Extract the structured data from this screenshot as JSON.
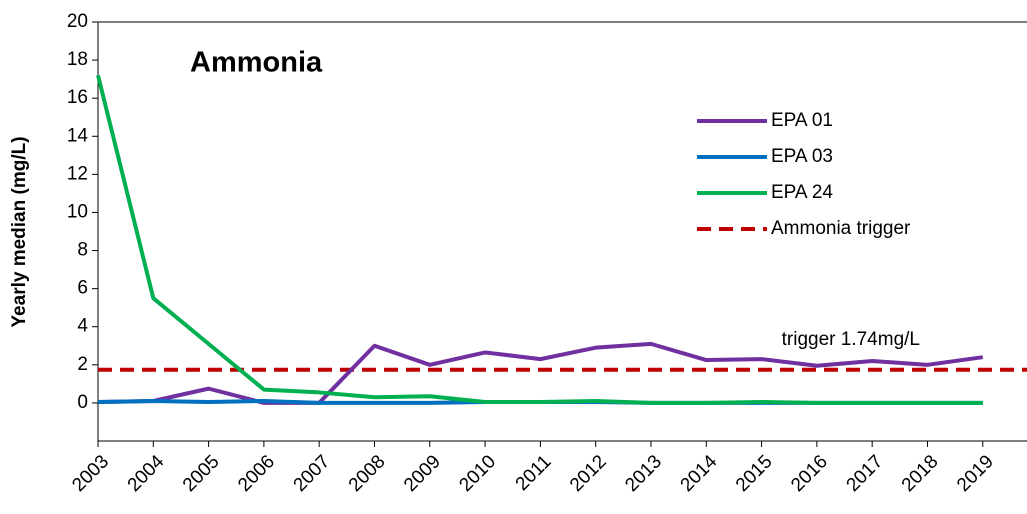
{
  "chart_data": {
    "type": "line",
    "title": "Ammonia",
    "y_label": "Yearly median (mg/L)",
    "x": [
      2003,
      2004,
      2005,
      2006,
      2007,
      2008,
      2009,
      2010,
      2011,
      2012,
      2013,
      2014,
      2015,
      2016,
      2017,
      2018,
      2019
    ],
    "xlim": [
      2003,
      2019.8
    ],
    "xticks": [
      2003,
      2004,
      2005,
      2006,
      2007,
      2008,
      2009,
      2010,
      2011,
      2012,
      2013,
      2014,
      2015,
      2016,
      2017,
      2018,
      2019
    ],
    "ylim": [
      -2,
      20
    ],
    "yticks": [
      0,
      2,
      4,
      6,
      8,
      10,
      12,
      14,
      16,
      18,
      20
    ],
    "series": [
      {
        "name": "EPA 01",
        "color": "#7030a0",
        "values": [
          0.05,
          0.1,
          0.75,
          0.0,
          0.0,
          3.0,
          2.0,
          2.65,
          2.3,
          2.9,
          3.1,
          2.25,
          2.3,
          1.95,
          2.2,
          2.0,
          2.4
        ]
      },
      {
        "name": "EPA 03",
        "color": "#0070c0",
        "values": [
          0.05,
          0.1,
          0.05,
          0.1,
          0.0,
          0.0,
          0.0,
          0.05,
          0.05,
          0.05,
          0.0,
          0.0,
          0.0,
          0.0,
          0.0,
          0.0,
          0.0
        ]
      },
      {
        "name": "EPA 24",
        "color": "#00b050",
        "values": [
          17.2,
          5.5,
          3.1,
          0.7,
          0.55,
          0.3,
          0.35,
          0.05,
          0.05,
          0.1,
          0.0,
          0.0,
          0.05,
          0.0,
          0.0,
          0.0,
          0.0
        ]
      }
    ],
    "reference_lines": [
      {
        "name": "Ammonia trigger",
        "value": 1.74,
        "color": "#c00000",
        "label": "trigger 1.74mg/L"
      }
    ]
  }
}
